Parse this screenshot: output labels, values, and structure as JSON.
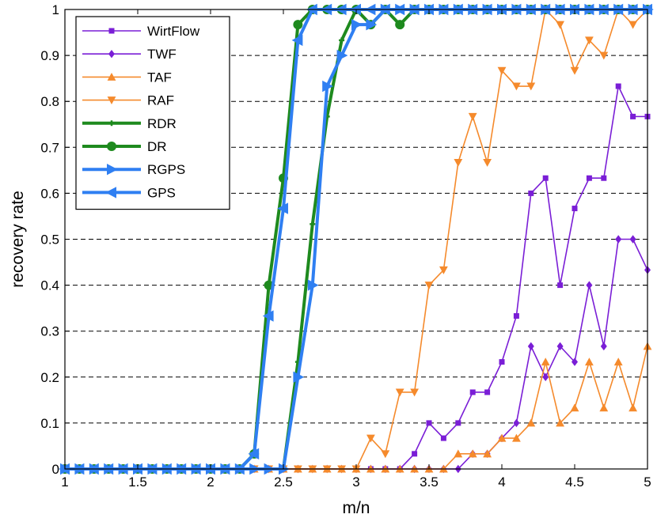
{
  "chart_data": {
    "type": "line",
    "title": "",
    "xlabel": "m/n",
    "ylabel": "recovery rate",
    "xlim": [
      1,
      5
    ],
    "ylim": [
      0,
      1
    ],
    "xticks": [
      "1",
      "1.5",
      "2",
      "2.5",
      "3",
      "3.5",
      "4",
      "4.5",
      "5"
    ],
    "yticks": [
      "0",
      "0.1",
      "0.2",
      "0.3",
      "0.4",
      "0.5",
      "0.6",
      "0.7",
      "0.8",
      "0.9",
      "1"
    ],
    "grid": "horizontal-dashed",
    "legend_position": "top-left",
    "x": [
      1.0,
      1.1,
      1.2,
      1.3,
      1.4,
      1.5,
      1.6,
      1.7,
      1.8,
      1.9,
      2.0,
      2.1,
      2.2,
      2.3,
      2.4,
      2.5,
      2.6,
      2.7,
      2.8,
      2.9,
      3.0,
      3.1,
      3.2,
      3.3,
      3.4,
      3.5,
      3.6,
      3.7,
      3.8,
      3.9,
      4.0,
      4.1,
      4.2,
      4.3,
      4.4,
      4.5,
      4.6,
      4.7,
      4.8,
      4.9,
      5.0
    ],
    "series": [
      {
        "name": "WirtFlow",
        "color": "#7a1ed6",
        "marker": "square",
        "linewidth": 1.6,
        "values": [
          0,
          0,
          0,
          0,
          0,
          0,
          0,
          0,
          0,
          0,
          0,
          0,
          0,
          0,
          0,
          0,
          0,
          0,
          0,
          0,
          0,
          0,
          0,
          0,
          0.033,
          0.1,
          0.067,
          0.1,
          0.167,
          0.167,
          0.233,
          0.333,
          0.6,
          0.633,
          0.4,
          0.567,
          0.633,
          0.633,
          0.833,
          0.767,
          0.767
        ]
      },
      {
        "name": "TWF",
        "color": "#7a1ed6",
        "marker": "diamond",
        "linewidth": 1.6,
        "values": [
          0,
          0,
          0,
          0,
          0,
          0,
          0,
          0,
          0,
          0,
          0,
          0,
          0,
          0,
          0,
          0,
          0,
          0,
          0,
          0,
          0,
          0,
          0,
          0,
          0,
          0,
          0,
          0,
          0.033,
          0.033,
          0.067,
          0.1,
          0.267,
          0.2,
          0.267,
          0.233,
          0.4,
          0.267,
          0.5,
          0.5,
          0.433
        ]
      },
      {
        "name": "TAF",
        "color": "#f58a2c",
        "marker": "triangle-up",
        "linewidth": 1.6,
        "values": [
          0,
          0,
          0,
          0,
          0,
          0,
          0,
          0,
          0,
          0,
          0,
          0,
          0,
          0,
          0,
          0,
          0,
          0,
          0,
          0,
          0,
          0,
          0,
          0,
          0,
          0,
          0,
          0.033,
          0.033,
          0.033,
          0.067,
          0.067,
          0.1,
          0.233,
          0.1,
          0.133,
          0.233,
          0.133,
          0.233,
          0.133,
          0.267
        ]
      },
      {
        "name": "RAF",
        "color": "#f58a2c",
        "marker": "triangle-down",
        "linewidth": 1.6,
        "values": [
          0,
          0,
          0,
          0,
          0,
          0,
          0,
          0,
          0,
          0,
          0,
          0,
          0,
          0,
          0,
          0,
          0,
          0,
          0,
          0,
          0,
          0.067,
          0.033,
          0.167,
          0.167,
          0.4,
          0.433,
          0.667,
          0.767,
          0.667,
          0.867,
          0.833,
          0.833,
          1,
          0.967,
          0.867,
          0.933,
          0.9,
          1,
          0.967,
          1
        ]
      },
      {
        "name": "RDR",
        "color": "#1e8a1e",
        "marker": "plus",
        "linewidth": 4,
        "values": [
          0,
          0,
          0,
          0,
          0,
          0,
          0,
          0,
          0,
          0,
          0,
          0,
          0,
          0,
          0,
          0,
          0.233,
          0.533,
          0.767,
          0.933,
          1,
          1,
          1,
          1,
          1,
          1,
          1,
          1,
          1,
          1,
          1,
          1,
          1,
          1,
          1,
          1,
          1,
          1,
          1,
          1,
          1
        ]
      },
      {
        "name": "DR",
        "color": "#1e8a1e",
        "marker": "circle",
        "linewidth": 4,
        "values": [
          0,
          0,
          0,
          0,
          0,
          0,
          0,
          0,
          0,
          0,
          0,
          0,
          0,
          0.033,
          0.4,
          0.633,
          0.967,
          1,
          1,
          1,
          1,
          0.967,
          1,
          0.967,
          1,
          1,
          1,
          1,
          1,
          1,
          1,
          1,
          1,
          1,
          1,
          1,
          1,
          1,
          1,
          1,
          1
        ]
      },
      {
        "name": "RGPS",
        "color": "#2f7ff2",
        "marker": "triangle-right",
        "linewidth": 4,
        "values": [
          0,
          0,
          0,
          0,
          0,
          0,
          0,
          0,
          0,
          0,
          0,
          0,
          0,
          0,
          0,
          0,
          0.2,
          0.4,
          0.833,
          0.9,
          0.967,
          0.967,
          1,
          1,
          1,
          1,
          1,
          1,
          1,
          1,
          1,
          1,
          1,
          1,
          1,
          1,
          1,
          1,
          1,
          1,
          1
        ]
      },
      {
        "name": "GPS",
        "color": "#2f7ff2",
        "marker": "triangle-left",
        "linewidth": 4,
        "values": [
          0,
          0,
          0,
          0,
          0,
          0,
          0,
          0,
          0,
          0,
          0,
          0,
          0,
          0.033,
          0.333,
          0.567,
          0.933,
          1,
          1,
          1,
          1,
          1,
          1,
          1,
          1,
          1,
          1,
          1,
          1,
          1,
          1,
          1,
          1,
          1,
          1,
          1,
          1,
          1,
          1,
          1,
          1
        ]
      }
    ]
  }
}
